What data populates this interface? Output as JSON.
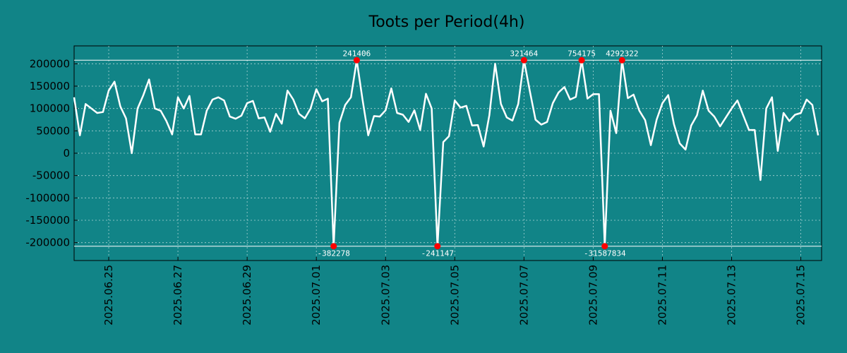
{
  "chart_data": {
    "type": "line",
    "title": "Toots per Period(4h)",
    "xlabel": "",
    "ylabel": "",
    "grid": true,
    "ylim": [
      -240000,
      240000
    ],
    "xlim_days": [
      0,
      21.6
    ],
    "x_start_date": "2025.06.24",
    "yticks": [
      -200000,
      -150000,
      -100000,
      -50000,
      0,
      50000,
      100000,
      150000,
      200000
    ],
    "ytick_labels": [
      "-200000",
      "-150000",
      "-100000",
      "-50000",
      "0",
      "50000",
      "100000",
      "150000",
      "200000"
    ],
    "xticks_days": [
      1,
      3,
      5,
      7,
      9,
      11,
      13,
      15,
      17,
      19,
      21
    ],
    "xtick_labels": [
      "2025.06.25",
      "2025.06.27",
      "2025.06.29",
      "2025.07.01",
      "2025.07.03",
      "2025.07.05",
      "2025.07.07",
      "2025.07.09",
      "2025.07.11",
      "2025.07.13",
      "2025.07.15"
    ],
    "clip_lines": {
      "upper": 208000,
      "lower": -208000
    },
    "series": [
      {
        "name": "toots",
        "color": "#ffffff",
        "marker_color": "#ff0000",
        "interval_days": 0.16667,
        "values": [
          125000,
          40000,
          110000,
          100000,
          90000,
          92000,
          140000,
          160000,
          105000,
          78000,
          0,
          100000,
          130000,
          165000,
          100000,
          95000,
          72000,
          42000,
          125000,
          100000,
          128000,
          42000,
          42000,
          95000,
          120000,
          125000,
          118000,
          82000,
          77000,
          84000,
          112000,
          117000,
          78000,
          80000,
          48000,
          88000,
          66000,
          140000,
          120000,
          88000,
          78000,
          100000,
          143000,
          116000,
          122000,
          -208000,
          68000,
          108000,
          125000,
          208000,
          120000,
          40000,
          83000,
          82000,
          96000,
          145000,
          90000,
          86000,
          70000,
          96000,
          52000,
          133000,
          100000,
          -208000,
          25000,
          38000,
          118000,
          102000,
          106000,
          62000,
          63000,
          15000,
          85000,
          200000,
          110000,
          80000,
          73000,
          110000,
          208000,
          140000,
          75000,
          64000,
          70000,
          112000,
          136000,
          148000,
          120000,
          126000,
          208000,
          122000,
          132000,
          132000,
          -208000,
          95000,
          45000,
          208000,
          123000,
          131000,
          95000,
          74000,
          18000,
          75000,
          112000,
          130000,
          65000,
          22000,
          8000,
          62000,
          85000,
          140000,
          95000,
          82000,
          60000,
          80000,
          100000,
          118000,
          85000,
          52000,
          52000,
          -60000,
          100000,
          125000,
          5000,
          90000,
          72000,
          86000,
          90000,
          120000,
          108000,
          40000
        ]
      }
    ],
    "peak_markers": [
      {
        "index": 45,
        "value": -208000,
        "label": "-382278",
        "position": "below"
      },
      {
        "index": 49,
        "value": 208000,
        "label": "241406",
        "position": "above"
      },
      {
        "index": 63,
        "value": -208000,
        "label": "-241147",
        "position": "below"
      },
      {
        "index": 78,
        "value": 208000,
        "label": "321464",
        "position": "above"
      },
      {
        "index": 88,
        "value": 208000,
        "label": "754175",
        "position": "above"
      },
      {
        "index": 92,
        "value": -208000,
        "label": "-31587834",
        "position": "below"
      },
      {
        "index": 95,
        "value": 208000,
        "label": "4292322",
        "position": "above"
      }
    ]
  }
}
